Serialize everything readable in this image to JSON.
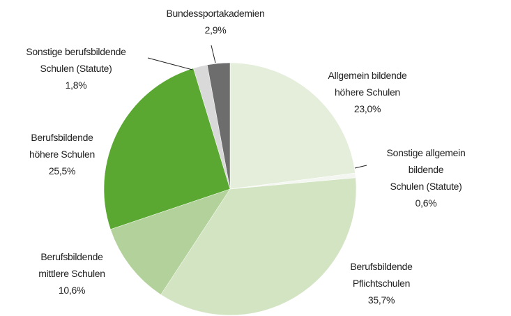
{
  "chart_data": {
    "type": "pie",
    "categories": [
      "Allgemein bildende\nhöhere Schulen",
      "Sonstige allgemein bildende\nSchulen (Statute)",
      "Berufsbildende\nPflichtschulen",
      "Berufsbildende\nmittlere Schulen",
      "Berufsbildende\nhöhere Schulen",
      "Sonstige berufsbildende\nSchulen (Statute)",
      "Bundessportakademien"
    ],
    "values": [
      23.0,
      0.6,
      35.7,
      10.6,
      25.5,
      1.8,
      2.9
    ],
    "value_labels": [
      "23,0%",
      "0,6%",
      "35,7%",
      "10,6%",
      "25,5%",
      "1,8%",
      "2,9%"
    ],
    "colors": [
      "#e4eedb",
      "#f4f7f1",
      "#d3e4c3",
      "#b3d19a",
      "#5aa832",
      "#d9d9d9",
      "#6d6d6d"
    ]
  }
}
